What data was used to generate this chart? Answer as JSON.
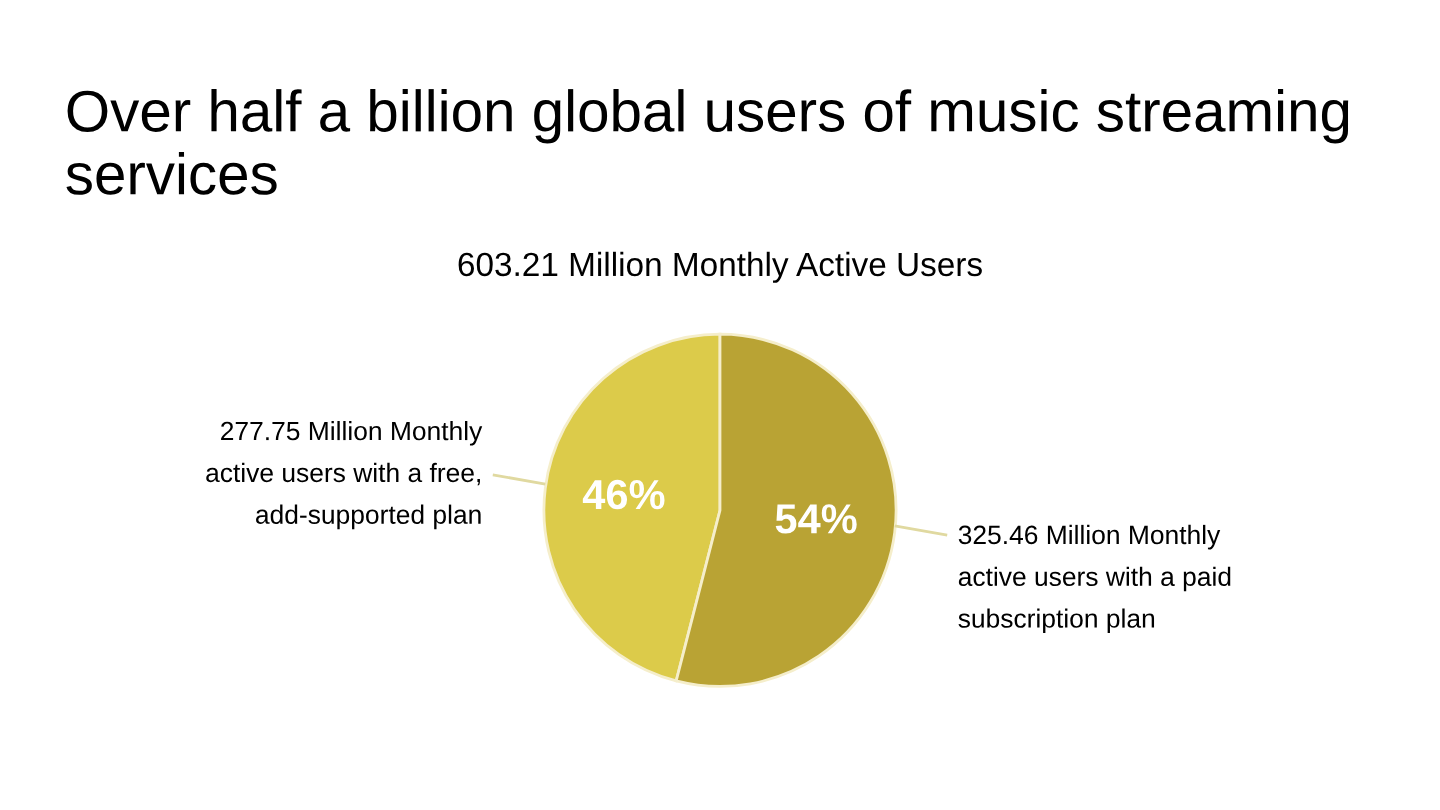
{
  "chart_data": {
    "type": "pie",
    "title": "Over half a billion global users of music streaming services",
    "subtitle": "603.21 Million Monthly Active Users",
    "categories": [
      "277.75 Million Monthly\nactive users with a free,\nadd-supported plan",
      "325.46 Million Monthly\nactive users with a paid\nsubscription plan"
    ],
    "values": [
      46,
      54
    ],
    "value_labels": [
      "46%",
      "54%"
    ],
    "colors": [
      "#dccb4a",
      "#b9a334"
    ]
  }
}
